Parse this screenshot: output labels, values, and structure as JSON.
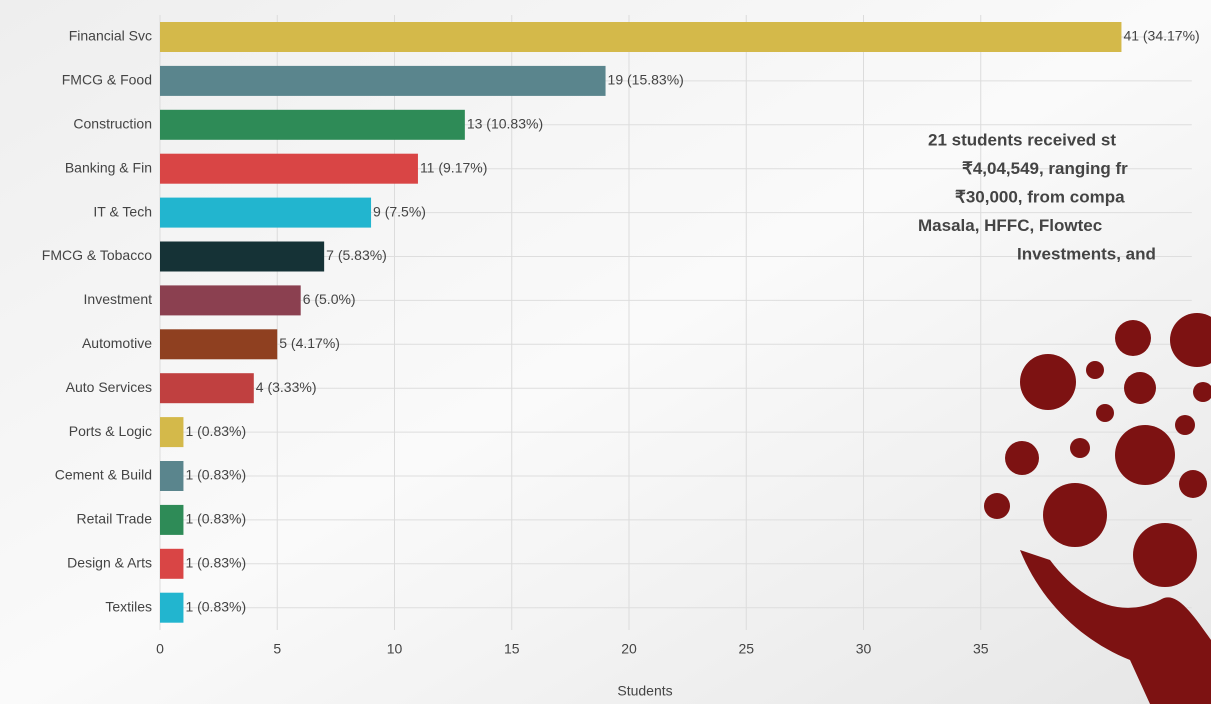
{
  "chart_data": {
    "type": "barh",
    "categories": [
      "Financial Svc",
      "FMCG & Food",
      "Construction",
      "Banking & Fin",
      "IT & Tech",
      "FMCG & Tobacco",
      "Investment",
      "Automotive",
      "Auto Services",
      "Ports & Logic",
      "Cement & Build",
      "Retail Trade",
      "Design & Arts",
      "Textiles"
    ],
    "values": [
      41,
      19,
      13,
      11,
      9,
      7,
      6,
      5,
      4,
      1,
      1,
      1,
      1,
      1
    ],
    "value_labels": [
      "41 (34.17%)",
      "19 (15.83%)",
      "13 (10.83%)",
      "11 (9.17%)",
      "9 (7.5%)",
      "7 (5.83%)",
      "6 (5.0%)",
      "5 (4.17%)",
      "4 (3.33%)",
      "1 (0.83%)",
      "1 (0.83%)",
      "1 (0.83%)",
      "1 (0.83%)",
      "1 (0.83%)"
    ],
    "colors": [
      "#d4b94a",
      "#5a858d",
      "#2e8b57",
      "#d94545",
      "#22b5cf",
      "#153236",
      "#8b4050",
      "#8f4020",
      "#c04040",
      "#d4b94a",
      "#5a858d",
      "#2e8b57",
      "#d94545",
      "#22b5cf"
    ],
    "xlabel": "Students",
    "xlim": [
      0,
      44
    ],
    "xticks": [
      0,
      5,
      10,
      15,
      20,
      25,
      30,
      35
    ],
    "grid": true,
    "annotation": [
      "21 students received st",
      "₹4,04,549, ranging fr",
      "₹30,000, from compa",
      "Masala, HFFC, Flowtec",
      "Investments, and"
    ],
    "annotation_color": "#8b1010"
  }
}
